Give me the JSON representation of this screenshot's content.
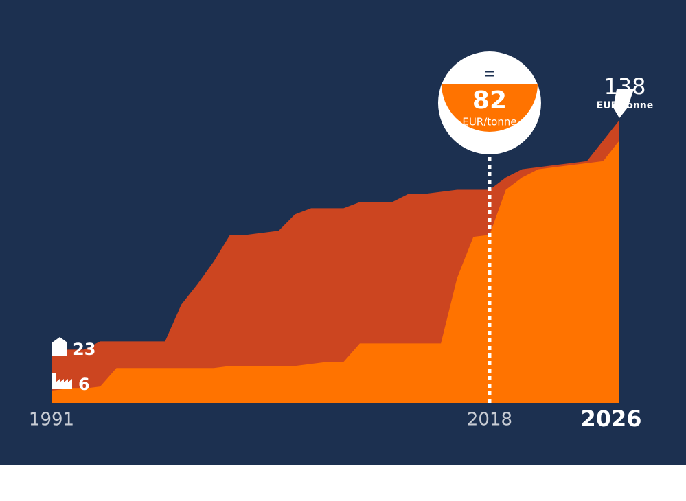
{
  "chart_data": {
    "type": "area",
    "x": [
      1991,
      1992,
      1993,
      1994,
      1995,
      1996,
      1997,
      1998,
      1999,
      2000,
      2001,
      2002,
      2003,
      2004,
      2005,
      2006,
      2007,
      2008,
      2009,
      2010,
      2011,
      2012,
      2013,
      2014,
      2015,
      2016,
      2017,
      2018,
      2019,
      2020,
      2021,
      2022,
      2023,
      2024,
      2025,
      2026
    ],
    "xlim": [
      1991,
      2026
    ],
    "xticks": [
      1991,
      2018,
      2026
    ],
    "ylim": [
      0,
      138
    ],
    "unit": "EUR/tonne",
    "series": [
      {
        "color": "#cc4520",
        "values": [
          23,
          26,
          26,
          30,
          30,
          30,
          30,
          30,
          48,
          58,
          69,
          82,
          82,
          83,
          84,
          92,
          95,
          95,
          95,
          98,
          98,
          98,
          102,
          102,
          103,
          104,
          104,
          104,
          110,
          114,
          115,
          116,
          117,
          118,
          128,
          138
        ]
      },
      {
        "color": "#ff7300",
        "values": [
          6,
          7,
          7,
          8,
          17,
          17,
          17,
          17,
          17,
          17,
          17,
          18,
          18,
          18,
          18,
          18,
          19,
          20,
          20,
          29,
          29,
          29,
          29,
          29,
          29,
          61,
          81,
          82,
          104,
          110,
          114,
          115,
          116,
          117,
          118,
          128
        ]
      }
    ]
  }
}
